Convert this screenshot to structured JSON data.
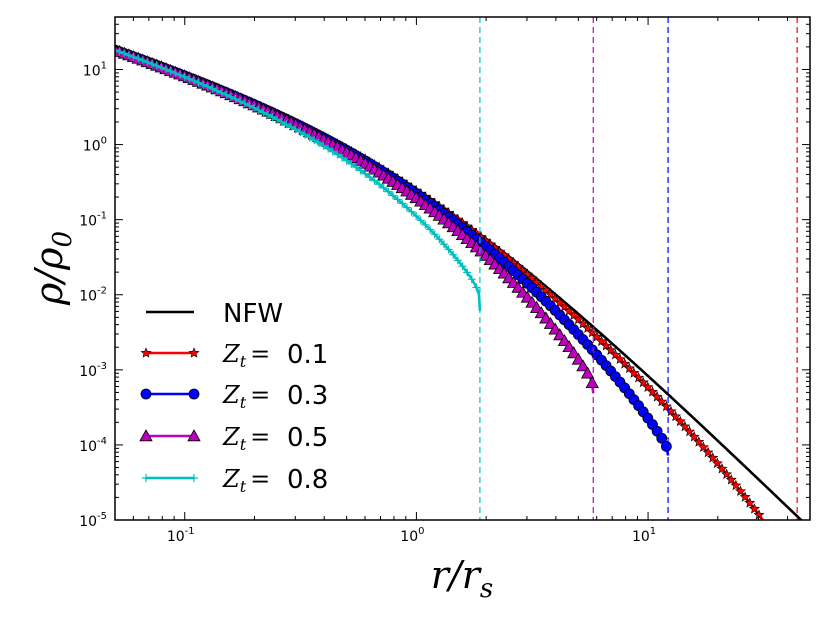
{
  "chart_data": {
    "type": "line",
    "xscale": "log",
    "yscale": "log",
    "xlim": [
      0.05,
      50
    ],
    "ylim": [
      1e-05,
      50
    ],
    "xlabel": "r/r_s",
    "ylabel": "ρ/ρ_0",
    "xticks": [
      {
        "value": 0.1,
        "base": "10",
        "exp": "-1"
      },
      {
        "value": 1,
        "base": "10",
        "exp": "0"
      },
      {
        "value": 10,
        "base": "10",
        "exp": "1"
      }
    ],
    "yticks": [
      {
        "value": 1e-05,
        "base": "10",
        "exp": "-5"
      },
      {
        "value": 0.0001,
        "base": "10",
        "exp": "-4"
      },
      {
        "value": 0.001,
        "base": "10",
        "exp": "-3"
      },
      {
        "value": 0.01,
        "base": "10",
        "exp": "-2"
      },
      {
        "value": 0.1,
        "base": "10",
        "exp": "-1"
      },
      {
        "value": 1,
        "base": "10",
        "exp": "0"
      },
      {
        "value": 10,
        "base": "10",
        "exp": "1"
      }
    ],
    "series": [
      {
        "name": "NFW",
        "label_main": "NFW",
        "label_value": "",
        "color": "#000000",
        "marker": "none",
        "truncation": null
      },
      {
        "name": "Z_t=0.1",
        "label_main": "Z_t =",
        "label_value": "0.1",
        "color": "#ff0000",
        "marker": "star",
        "truncation": 44
      },
      {
        "name": "Z_t=0.3",
        "label_main": "Z_t =",
        "label_value": "0.3",
        "color": "#0000ff",
        "marker": "circle",
        "truncation": 12.2
      },
      {
        "name": "Z_t=0.5",
        "label_main": "Z_t =",
        "label_value": "0.5",
        "color": "#bf00bf",
        "marker": "triangle",
        "truncation": 5.8
      },
      {
        "name": "Z_t=0.8",
        "label_main": "Z_t =",
        "label_value": "0.8",
        "color": "#00bfbf",
        "marker": "plus",
        "truncation": 1.88
      }
    ],
    "legend": {
      "placement": "lower-left"
    }
  }
}
